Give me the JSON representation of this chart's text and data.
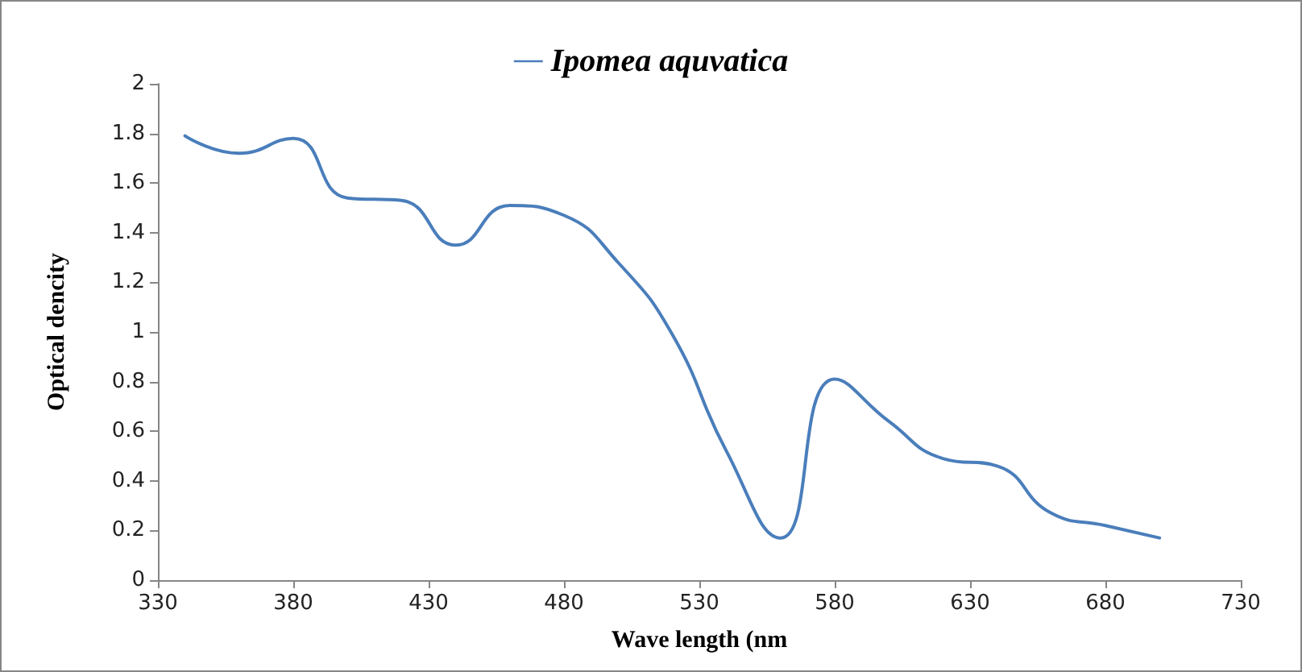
{
  "chart_data": {
    "type": "line",
    "xlabel": "Wave length (nm",
    "ylabel": "Optical dencity",
    "x": [
      340,
      360,
      380,
      400,
      420,
      440,
      460,
      480,
      500,
      520,
      540,
      560,
      580,
      600,
      620,
      640,
      660,
      680,
      700
    ],
    "series": [
      {
        "name": "Ipomea aquvatica",
        "color": "#4a7ebb",
        "values": [
          1.79,
          1.72,
          1.78,
          1.54,
          1.53,
          1.35,
          1.51,
          1.47,
          1.28,
          0.99,
          0.52,
          0.17,
          0.81,
          0.64,
          0.49,
          0.46,
          0.27,
          0.22,
          0.17
        ]
      }
    ],
    "xlim": [
      330,
      730
    ],
    "xticks": [
      330,
      380,
      430,
      480,
      530,
      580,
      630,
      680,
      730
    ],
    "ylim": [
      0,
      2
    ],
    "yticks": [
      0,
      0.2,
      0.4,
      0.6,
      0.8,
      1,
      1.2,
      1.4,
      1.6,
      1.8,
      2
    ],
    "legend": "top",
    "grid": false,
    "marker": "none",
    "line_style": "solid"
  }
}
